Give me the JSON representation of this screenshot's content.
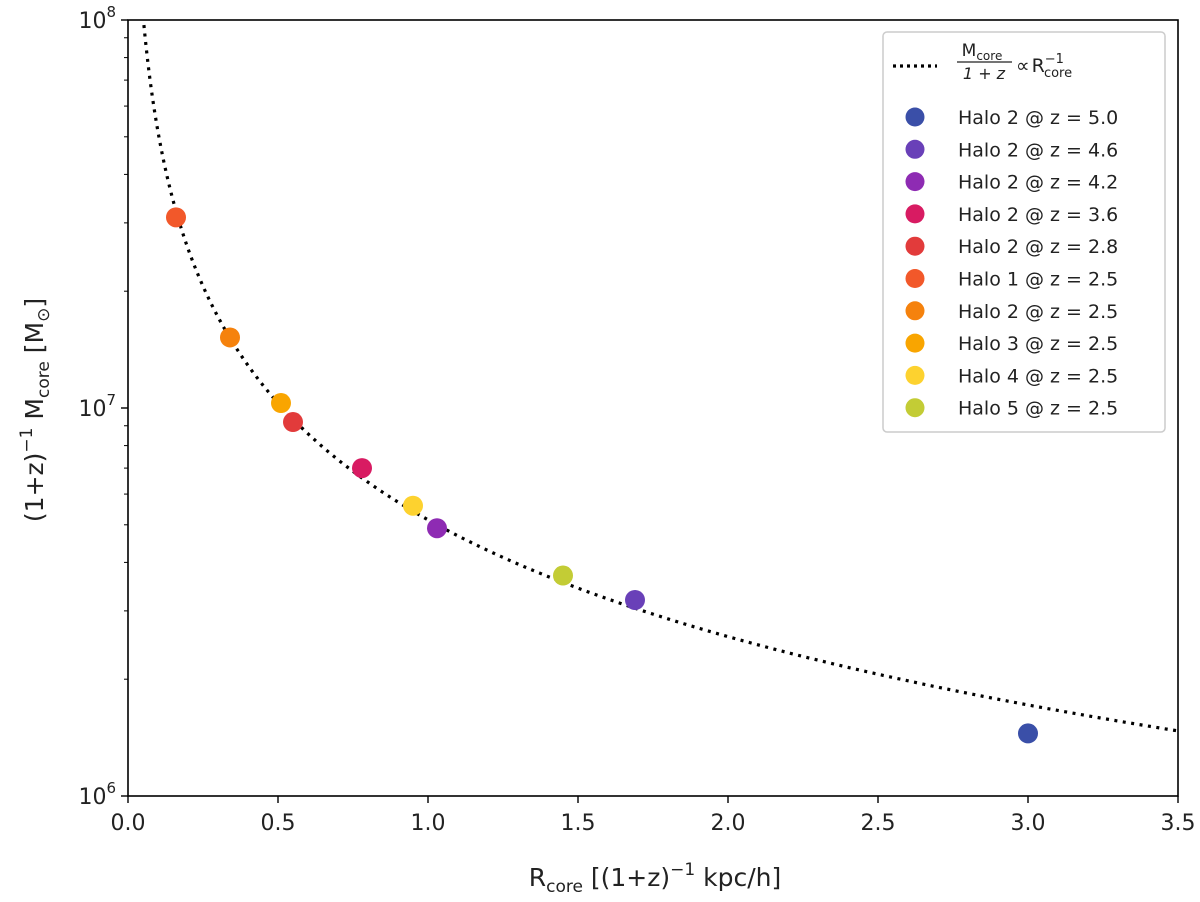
{
  "chart_data": {
    "type": "scatter",
    "xlabel": "R",
    "xlabel_sub": "core",
    "xlabel_rest": " [(1+z)",
    "xlabel_sup": "−1",
    "xlabel_end": " kpc/h]",
    "ylabel_pre": "(1+z)",
    "ylabel_sup": "−1",
    "ylabel_mid": " M",
    "ylabel_sub": "core",
    "ylabel_unit": " [M",
    "ylabel_sun_sub": "⊙",
    "ylabel_end": "]",
    "xlim": [
      0.0,
      3.5
    ],
    "ylim": [
      1000000,
      100000000
    ],
    "yscale": "log",
    "x_ticks": [
      {
        "value": 0.0,
        "label": "0.0"
      },
      {
        "value": 0.5,
        "label": "0.5"
      },
      {
        "value": 1.0,
        "label": "1.0"
      },
      {
        "value": 1.5,
        "label": "1.5"
      },
      {
        "value": 2.0,
        "label": "2.0"
      },
      {
        "value": 2.5,
        "label": "2.5"
      },
      {
        "value": 3.0,
        "label": "3.0"
      },
      {
        "value": 3.5,
        "label": "3.5"
      }
    ],
    "y_ticks": [
      {
        "value": 1000000,
        "base": "10",
        "exp": "6"
      },
      {
        "value": 10000000,
        "base": "10",
        "exp": "7"
      },
      {
        "value": 100000000,
        "base": "10",
        "exp": "8"
      }
    ],
    "fit_line": {
      "style": "dotted",
      "color": "#000000",
      "coefficient": 5150000,
      "label_num_main": "M",
      "label_num_sub": "core",
      "label_den": "1 + z",
      "label_prop": "∝",
      "label_r_main": "R",
      "label_r_sub": "core",
      "label_r_sup": "−1"
    },
    "legend_position": "top-right",
    "series": [
      {
        "name": "Halo 2 @ z = 5.0",
        "x": 3.0,
        "y": 1450000,
        "color": "#3a4fa8"
      },
      {
        "name": "Halo 2 @ z = 4.6",
        "x": 1.69,
        "y": 3200000,
        "color": "#6940b8"
      },
      {
        "name": "Halo 2 @ z = 4.2",
        "x": 1.03,
        "y": 4900000,
        "color": "#8e2bb3"
      },
      {
        "name": "Halo 2 @ z = 3.6",
        "x": 0.78,
        "y": 7000000,
        "color": "#d81b62"
      },
      {
        "name": "Halo 2 @ z = 2.8",
        "x": 0.55,
        "y": 9200000,
        "color": "#e23b3b"
      },
      {
        "name": "Halo 1 @ z = 2.5",
        "x": 0.16,
        "y": 31000000,
        "color": "#f2582a"
      },
      {
        "name": "Halo 2 @ z = 2.5",
        "x": 0.34,
        "y": 15200000,
        "color": "#f5820d"
      },
      {
        "name": "Halo 3 @ z = 2.5",
        "x": 0.51,
        "y": 10300000,
        "color": "#f9a500"
      },
      {
        "name": "Halo 4 @ z = 2.5",
        "x": 0.95,
        "y": 5600000,
        "color": "#fdd22f"
      },
      {
        "name": "Halo 5 @ z = 2.5",
        "x": 1.45,
        "y": 3700000,
        "color": "#c3cc35"
      }
    ]
  }
}
